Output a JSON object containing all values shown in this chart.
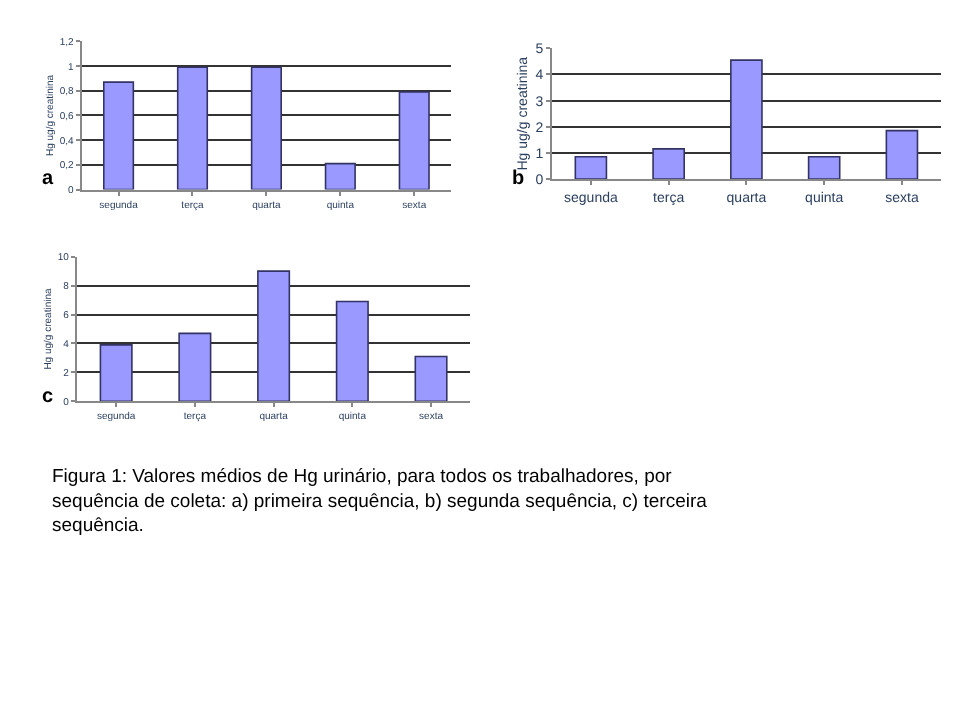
{
  "chart_data": [
    {
      "type": "bar",
      "ylabel": "Hg ug/g creatinina",
      "categories": [
        "segunda",
        "terça",
        "quarta",
        "quinta",
        "sexta"
      ],
      "values": [
        0.87,
        0.99,
        0.99,
        0.21,
        0.79
      ],
      "color": "#9999ff",
      "ylim": [
        0,
        1.2
      ],
      "yticks": [
        0,
        {
          "value": 0.2,
          "label": "0,2"
        },
        {
          "value": 0.4,
          "label": "0,4"
        },
        {
          "value": 0.6,
          "label": "0,6"
        },
        {
          "value": 0.8,
          "label": "0,8"
        },
        1,
        {
          "value": 1.2,
          "label": "1,2"
        }
      ],
      "grid": "y",
      "annotations": [
        "a"
      ]
    },
    {
      "type": "bar",
      "ylabel": "Hg ug/g creatinina",
      "categories": [
        "segunda",
        "terça",
        "quarta",
        "quinta",
        "sexta"
      ],
      "values": [
        0.85,
        1.15,
        4.55,
        0.85,
        1.85
      ],
      "color": "#9999ff",
      "ylim": [
        0,
        5
      ],
      "yticks": [
        0,
        1,
        2,
        3,
        4,
        5
      ],
      "grid": "y",
      "annotations": [
        "b"
      ]
    },
    {
      "type": "bar",
      "ylabel": "Hg ug/g creatinina",
      "categories": [
        "segunda",
        "terça",
        "quarta",
        "quinta",
        "sexta"
      ],
      "values": [
        3.9,
        4.7,
        9.0,
        6.9,
        3.1
      ],
      "color": "#9999ff",
      "ylim": [
        0,
        10
      ],
      "yticks": [
        0,
        2,
        4,
        6,
        8,
        10
      ],
      "grid": "y",
      "annotations": [
        "c",
        "Figura 1: Valores médios de Hg urinário, para todos os trabalhadores, por\nsequência de coleta: a) primeira sequência, b) segunda sequência, c) terceira\nsequência."
      ]
    }
  ]
}
